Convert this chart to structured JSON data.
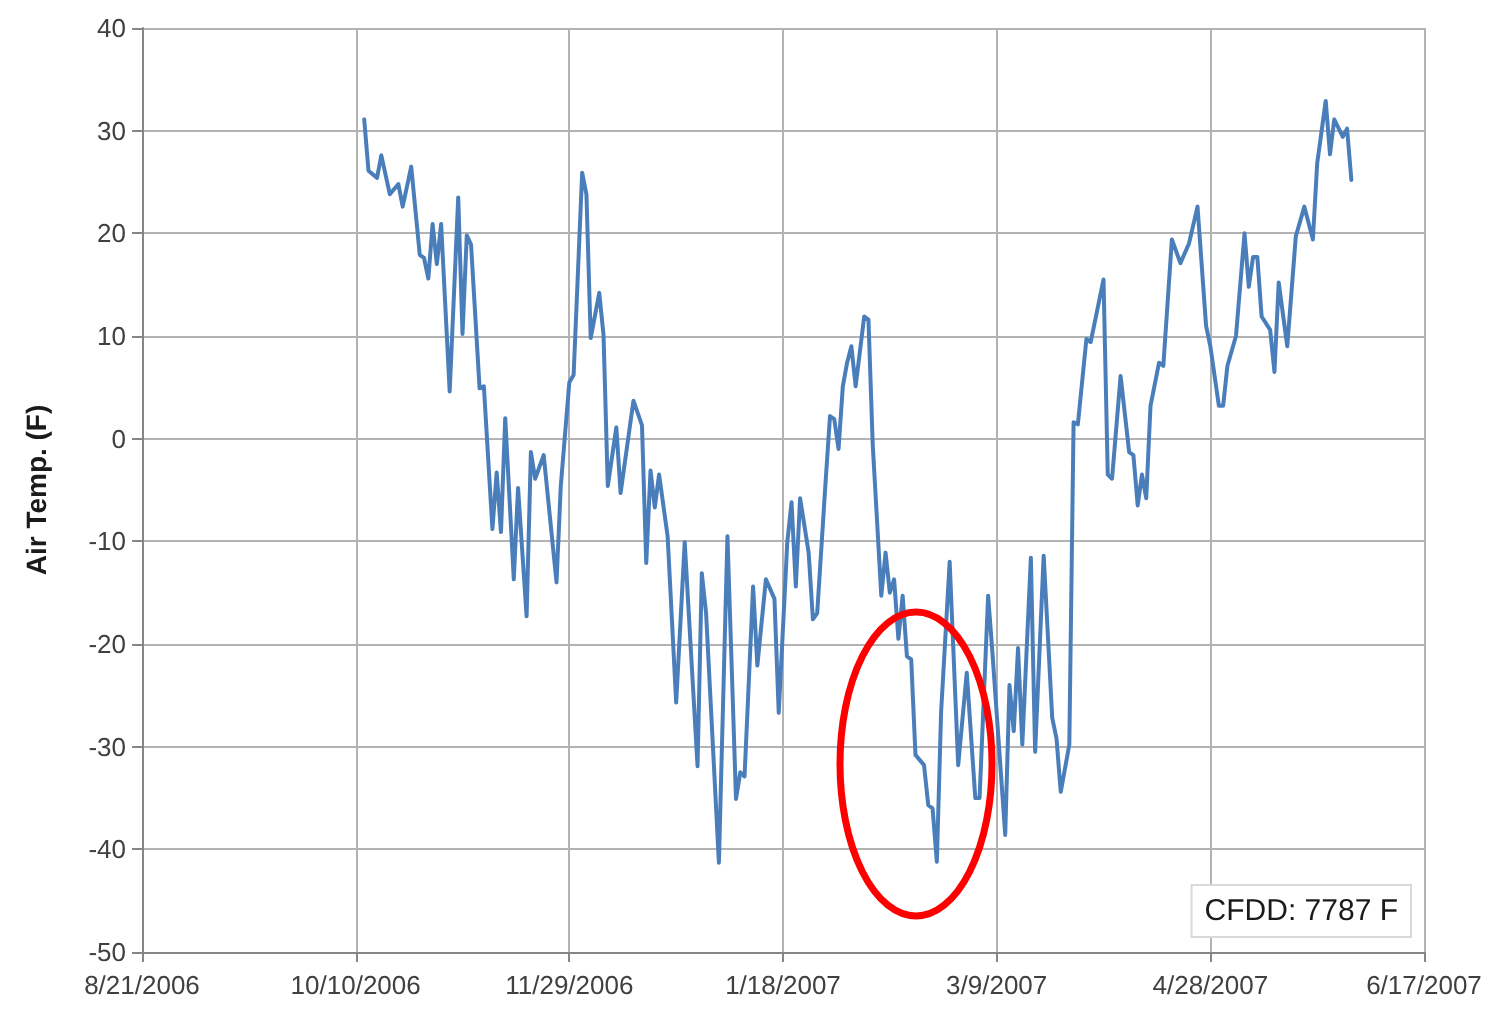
{
  "chart_data": {
    "type": "line",
    "ylabel": "Air Temp. (F)",
    "grid": true,
    "marker": "none",
    "line_style": "solid",
    "xlim": [
      "2006-08-21",
      "2007-06-17"
    ],
    "xticks": [
      {
        "value": "2006-08-21",
        "label": "8/21/2006"
      },
      {
        "value": "2006-10-10",
        "label": "10/10/2006"
      },
      {
        "value": "2006-11-29",
        "label": "11/29/2006"
      },
      {
        "value": "2007-01-18",
        "label": "1/18/2007"
      },
      {
        "value": "2007-03-09",
        "label": "3/9/2007"
      },
      {
        "value": "2007-04-28",
        "label": "4/28/2007"
      },
      {
        "value": "2007-06-17",
        "label": "6/17/2007"
      }
    ],
    "ylim": [
      -50,
      40
    ],
    "yticks": [
      -50,
      -40,
      -30,
      -20,
      -10,
      0,
      10,
      20,
      30,
      40
    ],
    "annotations": [
      "CFDD: 7787 F"
    ],
    "x": [
      "2006-10-12",
      "2006-10-13",
      "2006-10-15",
      "2006-10-16",
      "2006-10-18",
      "2006-10-20",
      "2006-10-21",
      "2006-10-23",
      "2006-10-25",
      "2006-10-26",
      "2006-10-27",
      "2006-10-28",
      "2006-10-29",
      "2006-10-30",
      "2006-11-01",
      "2006-11-03",
      "2006-11-04",
      "2006-11-05",
      "2006-11-06",
      "2006-11-08",
      "2006-11-09",
      "2006-11-11",
      "2006-11-12",
      "2006-11-13",
      "2006-11-14",
      "2006-11-16",
      "2006-11-17",
      "2006-11-19",
      "2006-11-20",
      "2006-11-21",
      "2006-11-23",
      "2006-11-26",
      "2006-11-27",
      "2006-11-29",
      "2006-11-30",
      "2006-12-02",
      "2006-12-03",
      "2006-12-04",
      "2006-12-06",
      "2006-12-07",
      "2006-12-08",
      "2006-12-10",
      "2006-12-11",
      "2006-12-14",
      "2006-12-16",
      "2006-12-17",
      "2006-12-18",
      "2006-12-19",
      "2006-12-20",
      "2006-12-22",
      "2006-12-24",
      "2006-12-26",
      "2006-12-29",
      "2006-12-30",
      "2006-12-31",
      "2007-01-03",
      "2007-01-05",
      "2007-01-07",
      "2007-01-08",
      "2007-01-09",
      "2007-01-11",
      "2007-01-12",
      "2007-01-14",
      "2007-01-16",
      "2007-01-17",
      "2007-01-19",
      "2007-01-20",
      "2007-01-21",
      "2007-01-22",
      "2007-01-24",
      "2007-01-25",
      "2007-01-26",
      "2007-01-28",
      "2007-01-29",
      "2007-01-30",
      "2007-01-31",
      "2007-02-01",
      "2007-02-02",
      "2007-02-03",
      "2007-02-04",
      "2007-02-06",
      "2007-02-07",
      "2007-02-08",
      "2007-02-10",
      "2007-02-11",
      "2007-02-12",
      "2007-02-13",
      "2007-02-14",
      "2007-02-15",
      "2007-02-16",
      "2007-02-17",
      "2007-02-18",
      "2007-02-20",
      "2007-02-21",
      "2007-02-22",
      "2007-02-23",
      "2007-02-24",
      "2007-02-26",
      "2007-02-28",
      "2007-03-02",
      "2007-03-04",
      "2007-03-05",
      "2007-03-07",
      "2007-03-08",
      "2007-03-11",
      "2007-03-12",
      "2007-03-13",
      "2007-03-14",
      "2007-03-15",
      "2007-03-17",
      "2007-03-18",
      "2007-03-20",
      "2007-03-22",
      "2007-03-23",
      "2007-03-24",
      "2007-03-26",
      "2007-03-27",
      "2007-03-28",
      "2007-03-30",
      "2007-03-31",
      "2007-04-03",
      "2007-04-04",
      "2007-04-05",
      "2007-04-07",
      "2007-04-09",
      "2007-04-10",
      "2007-04-11",
      "2007-04-12",
      "2007-04-13",
      "2007-04-14",
      "2007-04-16",
      "2007-04-17",
      "2007-04-19",
      "2007-04-21",
      "2007-04-23",
      "2007-04-25",
      "2007-04-27",
      "2007-04-28",
      "2007-04-30",
      "2007-05-01",
      "2007-05-02",
      "2007-05-04",
      "2007-05-06",
      "2007-05-07",
      "2007-05-08",
      "2007-05-09",
      "2007-05-10",
      "2007-05-12",
      "2007-05-13",
      "2007-05-14",
      "2007-05-16",
      "2007-05-18",
      "2007-05-20",
      "2007-05-22",
      "2007-05-23",
      "2007-05-25",
      "2007-05-26",
      "2007-05-27",
      "2007-05-29",
      "2007-05-30",
      "2007-05-31"
    ],
    "series": [
      {
        "color": "#4a7ebb",
        "values": [
          31.1,
          26.1,
          25.4,
          27.6,
          23.8,
          24.8,
          22.6,
          26.5,
          17.9,
          17.6,
          15.6,
          20.9,
          17,
          20.9,
          4.6,
          23.5,
          10.2,
          19.8,
          18.9,
          4.9,
          5.1,
          -8.8,
          -3.3,
          -9.1,
          2,
          -13.7,
          -4.8,
          -17.3,
          -1.3,
          -3.9,
          -1.6,
          -14,
          -4.6,
          5.5,
          6.2,
          25.9,
          23.8,
          9.8,
          14.2,
          10.1,
          -4.6,
          1.1,
          -5.3,
          3.7,
          1.3,
          -12.1,
          -3.1,
          -6.7,
          -3.5,
          -9.5,
          -25.7,
          -10.1,
          -31.9,
          -13.1,
          -17,
          -41.3,
          -9.5,
          -35.1,
          -32.5,
          -32.9,
          -14.4,
          -22.1,
          -13.7,
          -15.6,
          -26.7,
          -10.1,
          -6.2,
          -14.4,
          -5.8,
          -11.1,
          -17.6,
          -17,
          -4,
          2.2,
          1.9,
          -1,
          5.1,
          7.4,
          9,
          5.1,
          11.9,
          11.6,
          -0.6,
          -15.3,
          -11.1,
          -15,
          -13.7,
          -19.5,
          -15.3,
          -21.2,
          -21.5,
          -30.8,
          -31.8,
          -35.7,
          -36,
          -41.2,
          -26.6,
          -12,
          -31.8,
          -22.8,
          -35,
          -35,
          -15.3,
          -20.8,
          -38.6,
          -24,
          -28.5,
          -20.4,
          -29.8,
          -11.6,
          -30.5,
          -11.4,
          -27.2,
          -29.2,
          -34.4,
          -29.8,
          1.6,
          1.4,
          9.7,
          9.4,
          15.5,
          -3.5,
          -3.9,
          6.1,
          -1.3,
          -1.6,
          -6.5,
          -3.5,
          -5.8,
          3.2,
          7.4,
          7.1,
          19.4,
          17.1,
          19,
          22.6,
          11,
          9,
          3.2,
          3.2,
          7.1,
          10,
          20,
          14.8,
          17.7,
          17.7,
          11.9,
          10.6,
          6.5,
          15.2,
          9,
          19.7,
          22.6,
          19.4,
          26.8,
          32.9,
          27.7,
          31.1,
          29.4,
          30.2,
          25.2
        ]
      }
    ]
  }
}
